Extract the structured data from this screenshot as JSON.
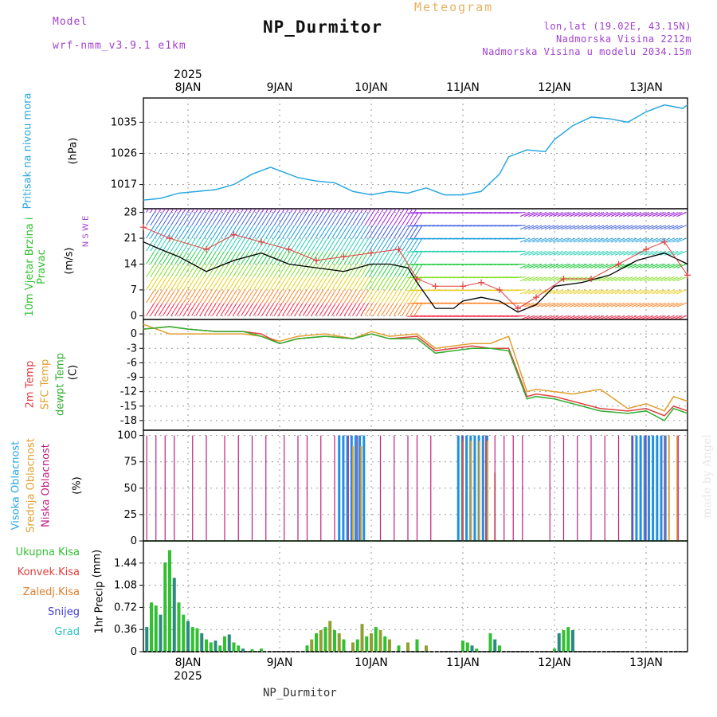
{
  "header": {
    "model_label": "Model",
    "model_name": "wrf-nmm_v3.9.1 e1km",
    "station": "NP_Durmitor",
    "product": "Meteogram",
    "lonlat": "lon,lat (19.02E, 43.15N)",
    "elevation": "Nadmorska Visina 2212m",
    "model_elevation": "Nadmorska Visina u modelu 2034.15m",
    "watermark": "made by Angel",
    "footer_station": "NP_Durmitor"
  },
  "colors": {
    "pressure": "#2aa8e0",
    "temp2m": "#e04040",
    "sfc": "#e0a030",
    "dewpt": "#30b030",
    "high_cloud": "#2090e0",
    "mid_cloud": "#e0a030",
    "low_cloud": "#c02080",
    "total_precip": "#30c030",
    "convective": "#e04040",
    "snow": "#4040d0",
    "hail": "#30c0c0"
  },
  "time_axis": {
    "days": [
      "8JAN",
      "9JAN",
      "10JAN",
      "11JAN",
      "12JAN",
      "13JAN"
    ],
    "year": "2025"
  },
  "chart_data": [
    {
      "type": "line",
      "panel": "pressure",
      "ylabel_left": "Pritisak na nivou mora",
      "unit": "(hPa)",
      "yticks": [
        1017,
        1026,
        1035
      ],
      "ylim": [
        1010,
        1042
      ],
      "x_day": [
        -0.5,
        -0.3,
        -0.1,
        0.1,
        0.3,
        0.5,
        0.7,
        0.9,
        1.0,
        1.2,
        1.4,
        1.6,
        1.8,
        2.0,
        2.2,
        2.4,
        2.6,
        2.8,
        3.0,
        3.2,
        3.4,
        3.5,
        3.7,
        3.9,
        4.0,
        4.2,
        4.4,
        4.6,
        4.8,
        5.0,
        5.2,
        5.4,
        5.5
      ],
      "values": [
        1012.5,
        1013,
        1014.5,
        1015,
        1015.5,
        1017,
        1020,
        1022,
        1021,
        1019,
        1018,
        1017.5,
        1015,
        1014,
        1015,
        1014.5,
        1016,
        1014,
        1014,
        1015,
        1020,
        1025,
        1027,
        1026.5,
        1030,
        1034,
        1036.5,
        1036,
        1035,
        1038,
        1040,
        1039,
        1040
      ]
    },
    {
      "type": "line",
      "panel": "wind",
      "ylabel_left": "10m Vjetar Brzina i Pravac",
      "unit": "(m/s)",
      "compass": "N S W E",
      "yticks": [
        0,
        7,
        14,
        21,
        28
      ],
      "ylim": [
        -1,
        29
      ],
      "series": [
        {
          "name": "speed",
          "x_day": [
            -0.5,
            -0.3,
            -0.1,
            0.2,
            0.5,
            0.8,
            1.1,
            1.4,
            1.7,
            2.0,
            2.2,
            2.4,
            2.5,
            2.7,
            2.9,
            3.0,
            3.2,
            3.4,
            3.6,
            3.8,
            4.0,
            4.3,
            4.6,
            4.9,
            5.2,
            5.5
          ],
          "values": [
            20,
            18,
            16,
            12,
            15,
            17,
            14,
            13,
            12,
            14,
            14,
            13,
            9,
            2,
            2,
            4,
            5,
            4,
            1,
            3,
            8,
            9,
            11,
            15,
            17,
            14
          ]
        },
        {
          "name": "gust",
          "x_day": [
            -0.5,
            -0.2,
            0.2,
            0.5,
            0.8,
            1.1,
            1.4,
            1.7,
            2.0,
            2.3,
            2.5,
            2.7,
            3.0,
            3.2,
            3.4,
            3.6,
            3.8,
            4.1,
            4.4,
            4.7,
            5.0,
            5.2,
            5.5
          ],
          "values": [
            24,
            21,
            18,
            22,
            20,
            18,
            15,
            16,
            17,
            18,
            10,
            8,
            8,
            9,
            7,
            2,
            5,
            10,
            10,
            14,
            18,
            20,
            11
          ]
        }
      ]
    },
    {
      "type": "line",
      "panel": "temperature",
      "ylabel_left": "2m Temp",
      "ylabel_mid": "SFC Temp",
      "ylabel_right": "dewpt Temp",
      "unit": "(C)",
      "yticks": [
        0,
        -3,
        -6,
        -9,
        -12,
        -15,
        -18
      ],
      "ylim": [
        -20,
        3
      ],
      "x_day": [
        -0.5,
        -0.2,
        0.0,
        0.3,
        0.6,
        0.8,
        1.0,
        1.2,
        1.5,
        1.8,
        2.0,
        2.2,
        2.5,
        2.7,
        2.9,
        3.1,
        3.3,
        3.5,
        3.7,
        3.8,
        4.0,
        4.2,
        4.5,
        4.8,
        5.0,
        5.2,
        5.3,
        5.5
      ],
      "series": [
        {
          "name": "2m Temp",
          "values": [
            1,
            1.5,
            1,
            0.5,
            0.5,
            0,
            -2,
            -1,
            -0.5,
            -1,
            0,
            -1,
            -0.5,
            -3.5,
            -3,
            -2.5,
            -3,
            -3,
            -13,
            -12.5,
            -13,
            -14,
            -15.5,
            -16,
            -15.5,
            -17,
            -15,
            -16
          ]
        },
        {
          "name": "SFC Temp",
          "values": [
            2,
            0,
            0,
            0,
            0,
            -0.5,
            -1.5,
            -0.5,
            0,
            -1,
            0.5,
            -0.5,
            0,
            -3,
            -2.5,
            -2,
            -2,
            -0.5,
            -12,
            -11.5,
            -12,
            -12.5,
            -11.5,
            -15.5,
            -14.5,
            -16,
            -13,
            -14
          ]
        },
        {
          "name": "dewpt Temp",
          "values": [
            1,
            1.5,
            1,
            0.5,
            0.5,
            -0.5,
            -2,
            -1,
            -0.5,
            -1,
            0,
            -1,
            -1,
            -4,
            -3.5,
            -3,
            -3,
            -3.5,
            -13.5,
            -13,
            -13.5,
            -14.5,
            -16,
            -16.5,
            -16,
            -18,
            -15.5,
            -16.5
          ]
        }
      ]
    },
    {
      "type": "bar",
      "panel": "cloud",
      "ylabel_left": "Visoka Oblacnost",
      "ylabel_mid": "Srednja Oblacnost",
      "ylabel_right": "Niska Oblacnost",
      "unit": "(%)",
      "yticks": [
        0,
        25,
        50,
        75,
        100
      ],
      "ylim": [
        0,
        105
      ],
      "low_x_day": [
        -0.45,
        -0.35,
        -0.25,
        -0.15,
        0.05,
        0.2,
        0.4,
        0.55,
        0.7,
        0.85,
        1.05,
        1.2,
        1.3,
        1.45,
        1.6,
        1.75,
        1.85,
        2.1,
        2.25,
        2.4,
        2.5,
        2.65,
        3.0,
        3.25,
        3.35,
        3.45,
        3.55,
        3.65,
        3.95,
        4.1,
        4.25,
        4.4,
        4.55,
        4.7,
        4.85,
        5.0,
        5.2,
        5.35
      ],
      "high_ranges": [
        [
          1.65,
          1.95,
          100
        ],
        [
          2.95,
          3.3,
          100
        ],
        [
          4.85,
          5.25,
          100
        ]
      ],
      "mid_ranges": [
        [
          1.8,
          1.95,
          90
        ],
        [
          3.0,
          3.3,
          95
        ],
        [
          3.35,
          3.4,
          65
        ],
        [
          5.25,
          5.4,
          100
        ]
      ]
    },
    {
      "type": "bar",
      "panel": "precip",
      "ylabel": "1hr Precip",
      "unit": "(mm)",
      "legend": [
        "Ukupna Kisa",
        "Konvek.Kisa",
        "Zaledj.Kisa",
        "Snijeg",
        "Grad"
      ],
      "yticks": [
        0,
        0.36,
        0.72,
        1.08,
        1.44
      ],
      "ylim": [
        0,
        1.8
      ],
      "x_day": [
        -0.45,
        -0.4,
        -0.35,
        -0.3,
        -0.25,
        -0.2,
        -0.15,
        -0.1,
        -0.05,
        0.0,
        0.05,
        0.1,
        0.15,
        0.2,
        0.25,
        0.3,
        0.35,
        0.4,
        0.45,
        0.5,
        0.55,
        0.6,
        0.7,
        0.8,
        1.3,
        1.35,
        1.4,
        1.45,
        1.5,
        1.55,
        1.6,
        1.65,
        1.7,
        1.8,
        1.85,
        1.9,
        1.95,
        2.0,
        2.05,
        2.1,
        2.15,
        2.2,
        2.3,
        2.4,
        2.5,
        2.6,
        3.0,
        3.05,
        3.1,
        3.15,
        3.3,
        3.35,
        3.4,
        4.0,
        4.05,
        4.1,
        4.15,
        4.2
      ],
      "values": [
        0.4,
        0.8,
        0.75,
        0.6,
        1.45,
        1.65,
        1.2,
        0.8,
        0.6,
        0.5,
        0.4,
        0.38,
        0.3,
        0.2,
        0.15,
        0.18,
        0.1,
        0.25,
        0.28,
        0.15,
        0.1,
        0.05,
        0.04,
        0.05,
        0.1,
        0.2,
        0.3,
        0.35,
        0.4,
        0.5,
        0.35,
        0.3,
        0.2,
        0.15,
        0.2,
        0.45,
        0.25,
        0.3,
        0.4,
        0.35,
        0.25,
        0.2,
        0.1,
        0.15,
        0.2,
        0.1,
        0.18,
        0.15,
        0.1,
        0.05,
        0.3,
        0.2,
        0.1,
        0.05,
        0.3,
        0.35,
        0.4,
        0.35
      ]
    }
  ]
}
